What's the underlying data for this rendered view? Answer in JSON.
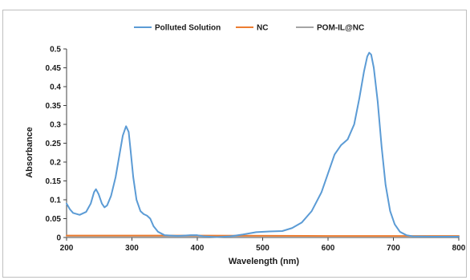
{
  "chart_data": {
    "type": "line",
    "xlabel": "Wavelength (nm)",
    "ylabel": "Absorbance",
    "xlim": [
      200,
      800
    ],
    "ylim": [
      0,
      0.5
    ],
    "x_ticks": [
      200,
      300,
      400,
      500,
      600,
      700,
      800
    ],
    "y_ticks": [
      0,
      0.05,
      0.1,
      0.15,
      0.2,
      0.25,
      0.3,
      0.35,
      0.4,
      0.45,
      0.5
    ],
    "y_tick_labels": [
      "0",
      "0.05",
      "0.1",
      "0.15",
      "0.2",
      "0.25",
      "0.3",
      "0.35",
      "0.4",
      "0.45",
      "0.5"
    ],
    "grid": false,
    "legend_position": "top",
    "series": [
      {
        "name": "Polluted Solution",
        "color": "#5b9bd5",
        "points": [
          [
            200,
            0.09
          ],
          [
            205,
            0.075
          ],
          [
            210,
            0.065
          ],
          [
            220,
            0.06
          ],
          [
            230,
            0.068
          ],
          [
            237,
            0.09
          ],
          [
            242,
            0.12
          ],
          [
            245,
            0.128
          ],
          [
            249,
            0.115
          ],
          [
            254,
            0.09
          ],
          [
            258,
            0.08
          ],
          [
            262,
            0.085
          ],
          [
            268,
            0.11
          ],
          [
            275,
            0.16
          ],
          [
            281,
            0.22
          ],
          [
            286,
            0.27
          ],
          [
            291,
            0.295
          ],
          [
            295,
            0.28
          ],
          [
            298,
            0.23
          ],
          [
            302,
            0.16
          ],
          [
            307,
            0.1
          ],
          [
            313,
            0.07
          ],
          [
            318,
            0.062
          ],
          [
            323,
            0.058
          ],
          [
            328,
            0.05
          ],
          [
            333,
            0.03
          ],
          [
            340,
            0.015
          ],
          [
            350,
            0.006
          ],
          [
            370,
            0.004
          ],
          [
            390,
            0.006
          ],
          [
            400,
            0.006
          ],
          [
            410,
            0.003
          ],
          [
            430,
            0.001
          ],
          [
            450,
            0.003
          ],
          [
            470,
            0.008
          ],
          [
            490,
            0.014
          ],
          [
            510,
            0.016
          ],
          [
            530,
            0.017
          ],
          [
            545,
            0.025
          ],
          [
            560,
            0.04
          ],
          [
            575,
            0.07
          ],
          [
            590,
            0.12
          ],
          [
            600,
            0.17
          ],
          [
            610,
            0.22
          ],
          [
            620,
            0.245
          ],
          [
            630,
            0.26
          ],
          [
            640,
            0.3
          ],
          [
            648,
            0.37
          ],
          [
            655,
            0.44
          ],
          [
            660,
            0.48
          ],
          [
            663,
            0.49
          ],
          [
            666,
            0.485
          ],
          [
            670,
            0.45
          ],
          [
            676,
            0.36
          ],
          [
            682,
            0.24
          ],
          [
            688,
            0.14
          ],
          [
            695,
            0.07
          ],
          [
            702,
            0.035
          ],
          [
            710,
            0.015
          ],
          [
            720,
            0.006
          ],
          [
            730,
            0.003
          ],
          [
            760,
            0.002
          ],
          [
            800,
            0.002
          ]
        ]
      },
      {
        "name": "NC",
        "color": "#ed7d31",
        "points": [
          [
            200,
            0.005
          ],
          [
            400,
            0.005
          ],
          [
            600,
            0.004
          ],
          [
            800,
            0.004
          ]
        ]
      },
      {
        "name": "POM-IL@NC",
        "color": "#a5a5a5",
        "points": [
          [
            200,
            0.002
          ],
          [
            400,
            0.002
          ],
          [
            600,
            0.002
          ],
          [
            800,
            0.002
          ]
        ]
      }
    ]
  }
}
